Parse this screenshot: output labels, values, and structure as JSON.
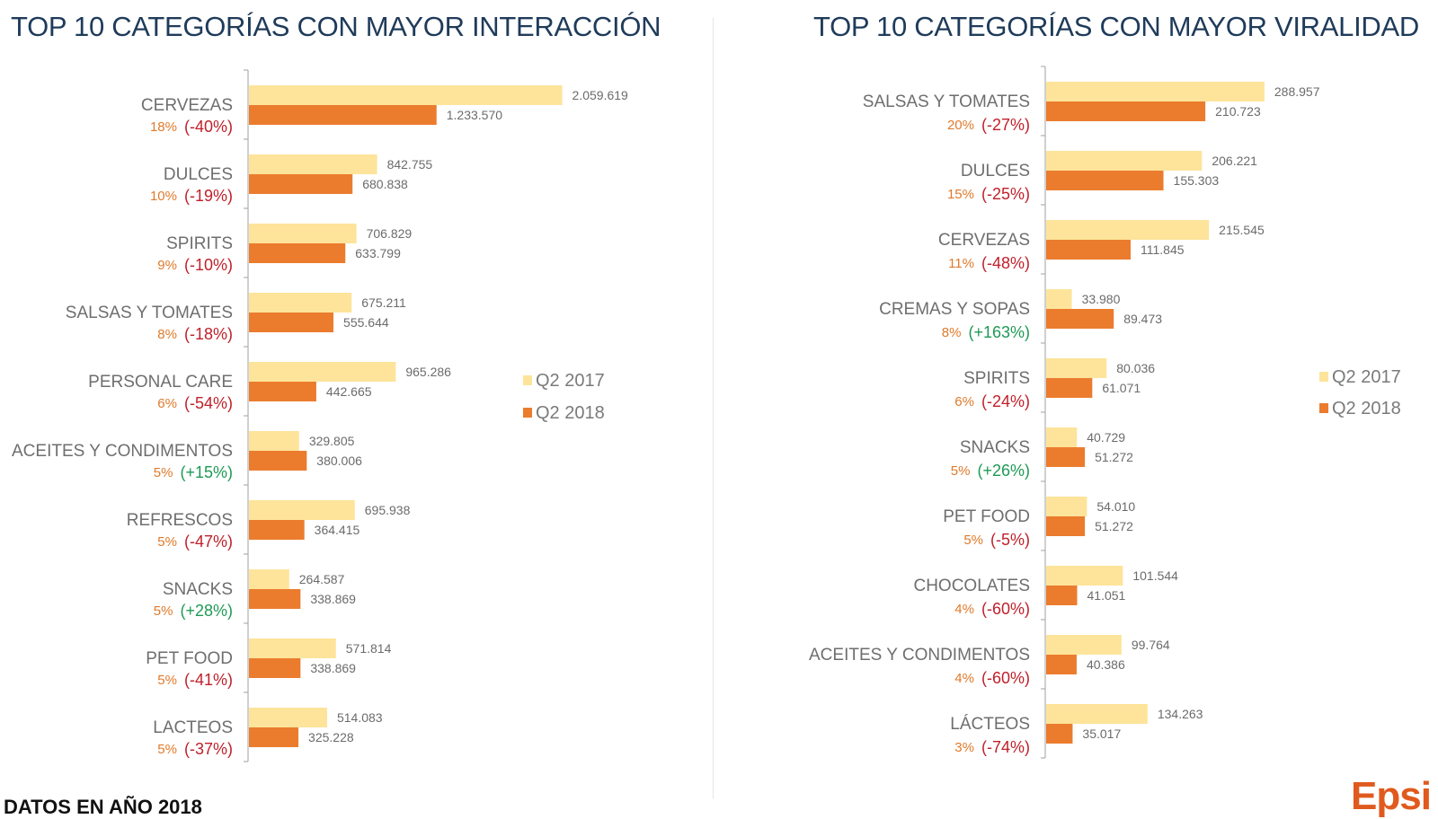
{
  "colors": {
    "q2_2017": "#fde49a",
    "q2_2018": "#eb7c2e",
    "title": "#1f3b5a",
    "share": "#e07a2b",
    "negative": "#c0202a",
    "positive": "#1e9a55",
    "axis": "#a0a0a0"
  },
  "footer": {
    "text": "DATOS EN AÑO 2018"
  },
  "logo": {
    "text": "Epsi"
  },
  "chart_data": [
    {
      "type": "bar",
      "orientation": "horizontal",
      "title": "TOP 10 CATEGORÍAS CON MAYOR INTERACCIÓN",
      "xlabel": "",
      "ylabel": "",
      "xlim": [
        0,
        2600000
      ],
      "grid": false,
      "legend_position": "right",
      "categories": [
        "CERVEZAS",
        "DULCES",
        "SPIRITS",
        "SALSAS Y TOMATES",
        "PERSONAL CARE",
        "ACEITES Y CONDIMENTOS",
        "REFRESCOS",
        "SNACKS",
        "PET FOOD",
        "LACTEOS"
      ],
      "shares": [
        "18%",
        "10%",
        "9%",
        "8%",
        "6%",
        "5%",
        "5%",
        "5%",
        "5%",
        "5%"
      ],
      "changes": [
        "(-40%)",
        "(-19%)",
        "(-10%)",
        "(-18%)",
        "(-54%)",
        "(+15%)",
        "(-47%)",
        "(+28%)",
        "(-41%)",
        "(-37%)"
      ],
      "series": [
        {
          "name": "Q2 2017",
          "values": [
            2059619,
            842755,
            706829,
            675211,
            965286,
            329805,
            695938,
            264587,
            571814,
            514083
          ],
          "labels": [
            "2.059.619",
            "842.755",
            "706.829",
            "675.211",
            "965.286",
            "329.805",
            "695.938",
            "264.587",
            "571.814",
            "514.083"
          ]
        },
        {
          "name": "Q2 2018",
          "values": [
            1233570,
            680838,
            633799,
            555644,
            442665,
            380006,
            364415,
            338869,
            338869,
            325228
          ],
          "labels": [
            "1.233.570",
            "680.838",
            "633.799",
            "555.644",
            "442.665",
            "380.006",
            "364.415",
            "338.869",
            "338.869",
            "325.228"
          ]
        }
      ]
    },
    {
      "type": "bar",
      "orientation": "horizontal",
      "title": "TOP 10 CATEGORÍAS CON MAYOR VIRALIDAD",
      "xlabel": "",
      "ylabel": "",
      "xlim": [
        0,
        345000
      ],
      "grid": false,
      "legend_position": "right",
      "categories": [
        "SALSAS Y TOMATES",
        "DULCES",
        "CERVEZAS",
        "CREMAS Y SOPAS",
        "SPIRITS",
        "SNACKS",
        "PET FOOD",
        "CHOCOLATES",
        "ACEITES Y CONDIMENTOS",
        "LÁCTEOS"
      ],
      "shares": [
        "20%",
        "15%",
        "11%",
        "8%",
        "6%",
        "5%",
        "5%",
        "4%",
        "4%",
        "3%"
      ],
      "changes": [
        "(-27%)",
        "(-25%)",
        "(-48%)",
        "(+163%)",
        "(-24%)",
        "(+26%)",
        "(-5%)",
        "(-60%)",
        "(-60%)",
        "(-74%)"
      ],
      "series": [
        {
          "name": "Q2 2017",
          "values": [
            288957,
            206221,
            215545,
            33980,
            80036,
            40729,
            54010,
            101544,
            99764,
            134263
          ],
          "labels": [
            "288.957",
            "206.221",
            "215.545",
            "33.980",
            "80.036",
            "40.729",
            "54.010",
            "101.544",
            "99.764",
            "134.263"
          ]
        },
        {
          "name": "Q2 2018",
          "values": [
            210723,
            155303,
            111845,
            89473,
            61071,
            51272,
            51272,
            41051,
            40386,
            35017
          ],
          "labels": [
            "210.723",
            "155.303",
            "111.845",
            "89.473",
            "61.071",
            "51.272",
            "51.272",
            "41.051",
            "40.386",
            "35.017"
          ]
        }
      ]
    }
  ]
}
